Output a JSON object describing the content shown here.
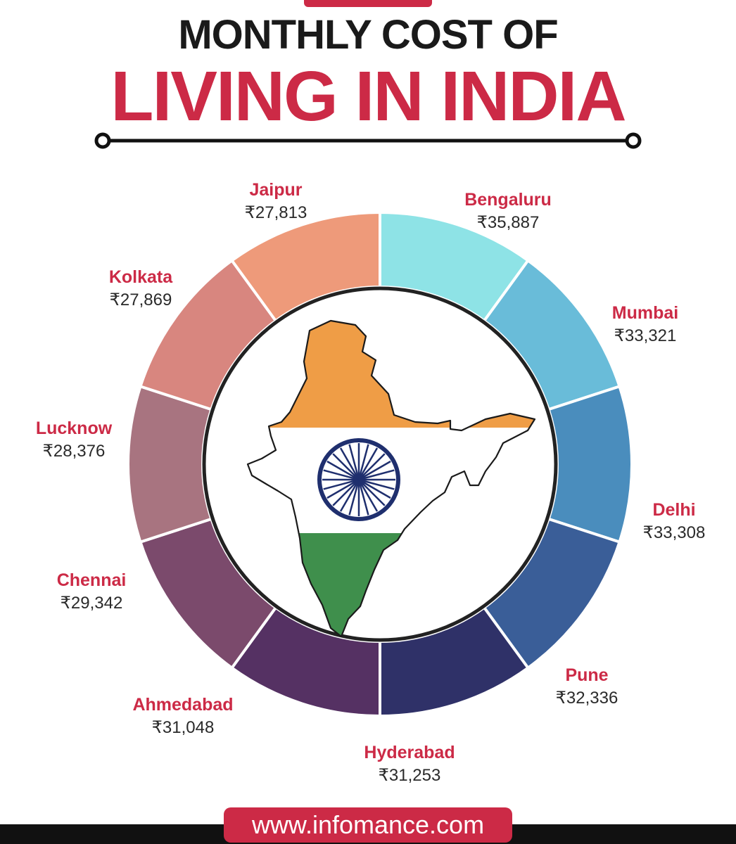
{
  "title": {
    "line1": "MONTHLY COST OF",
    "line2": "LIVING IN INDIA"
  },
  "website": "www.infomance.com",
  "colors": {
    "accent": "#cc2a46",
    "title_dark": "#1a1a1a",
    "footer": "#111111"
  },
  "chart_data": {
    "type": "pie",
    "title": "MONTHLY COST OF LIVING IN INDIA",
    "currency": "₹",
    "legend": "labels-around-ring",
    "slices": [
      {
        "city": "Bengaluru",
        "value": 35887,
        "label": "₹35,887",
        "color": "#8ee3e6"
      },
      {
        "city": "Mumbai",
        "value": 33321,
        "label": "₹33,321",
        "color": "#69bcd9"
      },
      {
        "city": "Delhi",
        "value": 33308,
        "label": "₹33,308",
        "color": "#4a8dbd"
      },
      {
        "city": "Pune",
        "value": 32336,
        "label": "₹32,336",
        "color": "#3a5e98"
      },
      {
        "city": "Hyderabad",
        "value": 31253,
        "label": "₹31,253",
        "color": "#2f3168"
      },
      {
        "city": "Ahmedabad",
        "value": 31048,
        "label": "₹31,048",
        "color": "#553163"
      },
      {
        "city": "Chennai",
        "value": 29342,
        "label": "₹29,342",
        "color": "#7b4a6c"
      },
      {
        "city": "Lucknow",
        "value": 28376,
        "label": "₹28,376",
        "color": "#a87480"
      },
      {
        "city": "Kolkata",
        "value": 27869,
        "label": "₹27,869",
        "color": "#d8867f"
      },
      {
        "city": "Jaipur",
        "value": 27813,
        "label": "₹27,813",
        "color": "#ee9a7a"
      }
    ]
  },
  "center_graphic": {
    "icon": "india-flag-map-icon",
    "colors": {
      "saffron": "#ef9d46",
      "white": "#ffffff",
      "green": "#3f8f4c",
      "chakra": "#1f2f6e"
    }
  }
}
